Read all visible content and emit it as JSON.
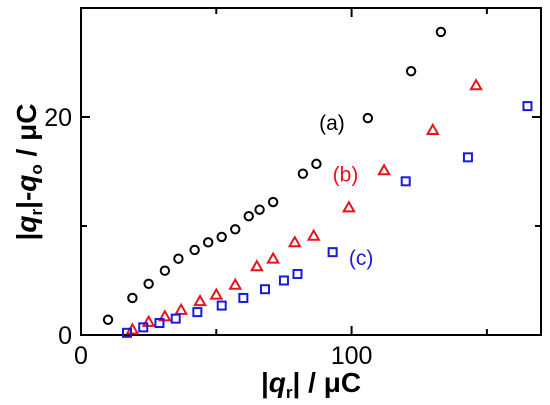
{
  "chart_data": {
    "type": "scatter",
    "xlim": [
      0,
      170
    ],
    "ylim": [
      0,
      30
    ],
    "grid": false,
    "legend": "none",
    "xaxis": {
      "ticks": [
        0,
        50,
        100,
        150
      ],
      "tick_labels": [
        "0",
        "",
        "100",
        ""
      ]
    },
    "yaxis": {
      "ticks": [
        0,
        10,
        20,
        30
      ],
      "tick_labels": [
        "0",
        "",
        "20",
        ""
      ]
    },
    "xlabel": {
      "open": "|",
      "q": "q",
      "sub": "r",
      "close": "|",
      "unit": " / μC"
    },
    "ylabel": {
      "open": "|",
      "q1": "q",
      "sub1": "r",
      "mid": "|-",
      "q2": "q",
      "sub2": "o",
      "unit": " / μC"
    },
    "series": [
      {
        "name": "(a)",
        "marker": "circle",
        "color": "#000000",
        "points": [
          [
            10,
            1.4
          ],
          [
            19,
            3.4
          ],
          [
            25,
            4.7
          ],
          [
            31,
            5.9
          ],
          [
            36,
            7.0
          ],
          [
            42,
            7.8
          ],
          [
            47,
            8.5
          ],
          [
            52,
            9.0
          ],
          [
            57,
            9.7
          ],
          [
            62,
            10.9
          ],
          [
            66,
            11.5
          ],
          [
            71,
            12.2
          ],
          [
            82,
            14.8
          ],
          [
            87,
            15.7
          ],
          [
            106,
            19.9
          ],
          [
            122,
            24.2
          ],
          [
            133,
            27.8
          ]
        ]
      },
      {
        "name": "(b)",
        "marker": "triangle",
        "color": "#e8141c",
        "points": [
          [
            19,
            0.5
          ],
          [
            25,
            1.2
          ],
          [
            31,
            1.7
          ],
          [
            37,
            2.3
          ],
          [
            44,
            3.1
          ],
          [
            50,
            3.7
          ],
          [
            57,
            4.6
          ],
          [
            65,
            6.3
          ],
          [
            71,
            7.0
          ],
          [
            79,
            8.5
          ],
          [
            86,
            9.1
          ],
          [
            99,
            11.7
          ],
          [
            112,
            15.1
          ],
          [
            130,
            18.8
          ],
          [
            146,
            22.9
          ]
        ]
      },
      {
        "name": "(c)",
        "marker": "square",
        "color": "#1a1adb",
        "points": [
          [
            17,
            0.2
          ],
          [
            23,
            0.7
          ],
          [
            29,
            1.1
          ],
          [
            35,
            1.5
          ],
          [
            43,
            2.1
          ],
          [
            52,
            2.7
          ],
          [
            60,
            3.4
          ],
          [
            68,
            4.2
          ],
          [
            75,
            5.0
          ],
          [
            80,
            5.6
          ],
          [
            93,
            7.6
          ],
          [
            120,
            14.1
          ],
          [
            143,
            16.3
          ],
          [
            165,
            21.0
          ]
        ]
      }
    ],
    "annotations": [
      {
        "text": "(a)",
        "color": "#000000",
        "x": 88,
        "y": 18.8
      },
      {
        "text": "(b)",
        "color": "#e8141c",
        "x": 93,
        "y": 14.1
      },
      {
        "text": "(c)",
        "color": "#1a1adb",
        "x": 99,
        "y": 6.4
      }
    ]
  }
}
